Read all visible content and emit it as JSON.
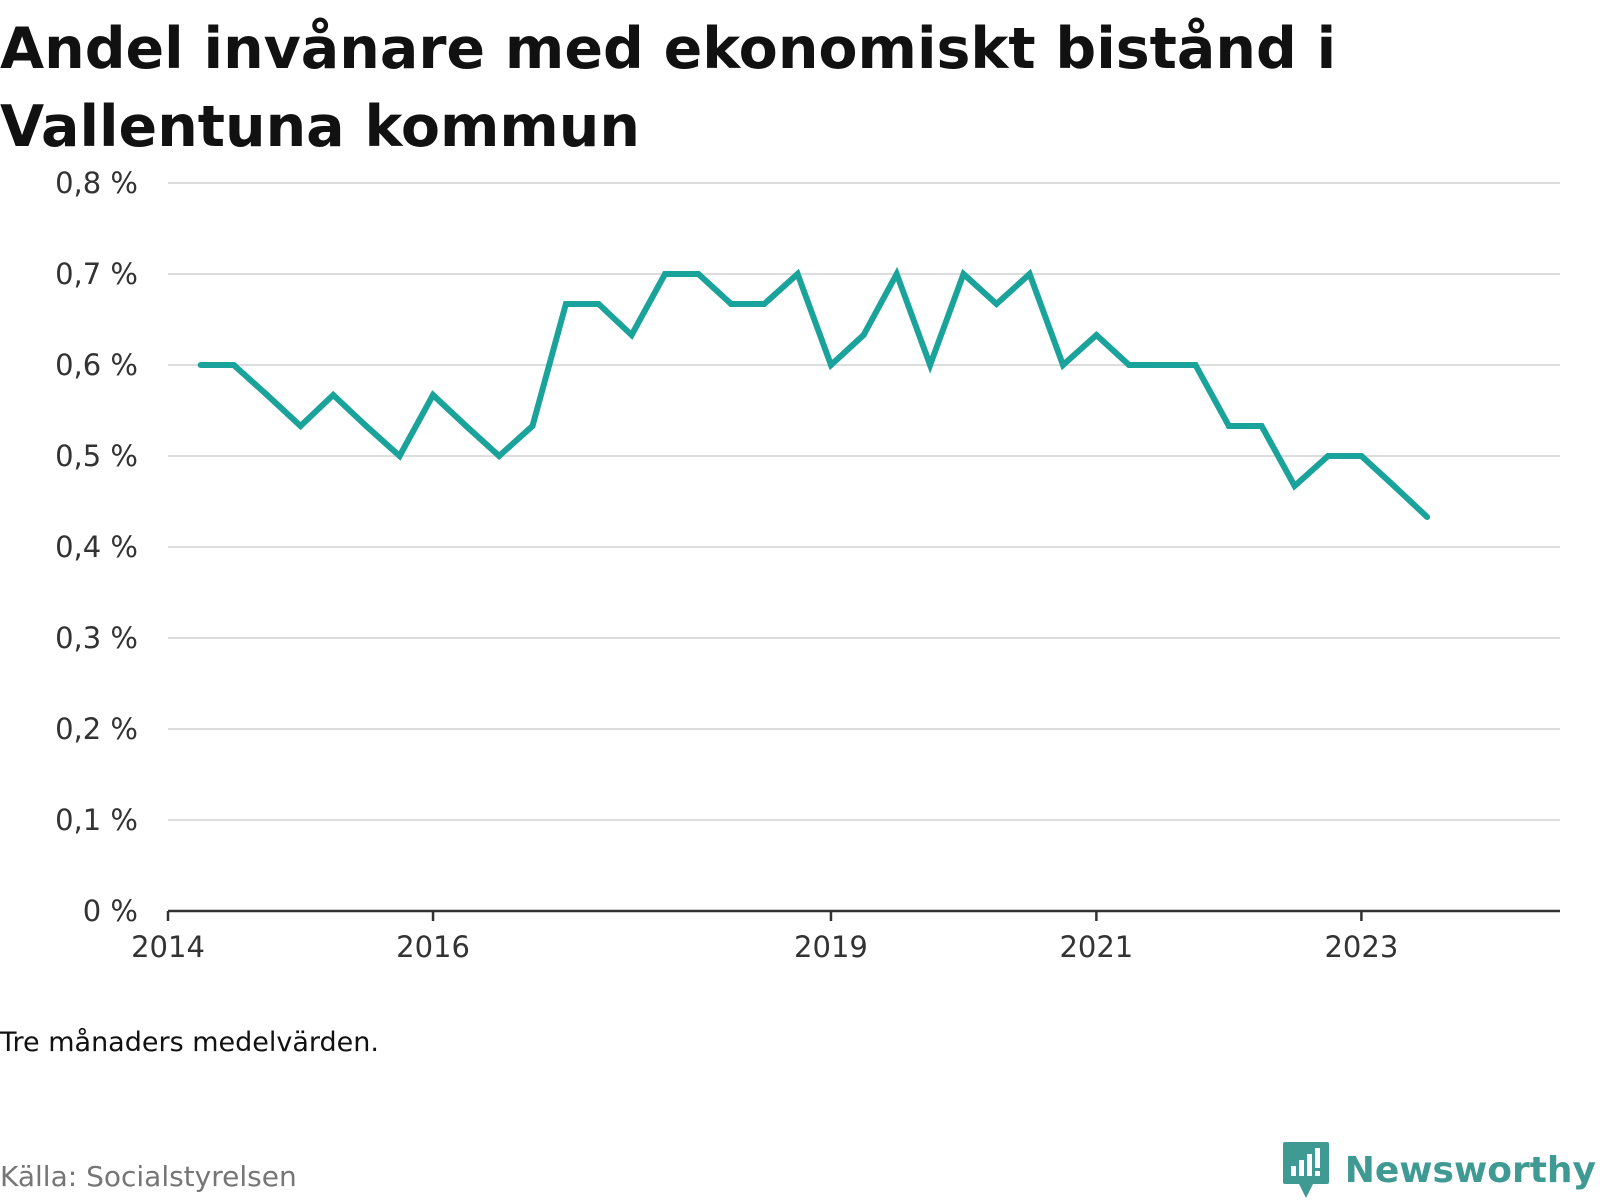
{
  "title": "Andel invånare med ekonomiskt bistånd i Vallentuna kommun",
  "note": "Tre månaders medelvärden.",
  "source": "Källa: Socialstyrelsen",
  "brand": {
    "name": "Newsworthy",
    "icon": "newsworthy-logo-icon"
  },
  "colors": {
    "line": "#1aa39a",
    "grid": "#dddddd",
    "axis": "#333333",
    "brand": "#3f9a94"
  },
  "chart_data": {
    "type": "line",
    "title": "Andel invånare med ekonomiskt bistånd i Vallentuna kommun",
    "xlabel": "",
    "ylabel": "",
    "ylim": [
      0,
      0.8
    ],
    "yticks": [
      0,
      0.1,
      0.2,
      0.3,
      0.4,
      0.5,
      0.6,
      0.7,
      0.8
    ],
    "ytick_labels": [
      "0 %",
      "0,1 %",
      "0,2 %",
      "0,3 %",
      "0,4 %",
      "0,5 %",
      "0,6 %",
      "0,7 %",
      "0,8 %"
    ],
    "xlim": [
      "2014-01-01",
      "2024-07-01"
    ],
    "xticks": [
      "2014-01-01",
      "2016-01-01",
      "2019-01-01",
      "2021-01-01",
      "2023-01-01"
    ],
    "xtick_labels": [
      "2014",
      "2016",
      "2019",
      "2021",
      "2023"
    ],
    "grid": true,
    "legend": "none",
    "series": [
      {
        "x": [
          "2014-04-01",
          "2014-07-01",
          "2014-10-01",
          "2015-01-01",
          "2015-04-01",
          "2015-07-01",
          "2015-10-01",
          "2016-01-01",
          "2016-04-01",
          "2016-07-01",
          "2016-10-01",
          "2017-01-01",
          "2017-04-01",
          "2017-07-01",
          "2017-10-01",
          "2018-01-01",
          "2018-04-01",
          "2018-07-01",
          "2018-10-01",
          "2019-01-01",
          "2019-04-01",
          "2019-07-01",
          "2019-10-01",
          "2020-01-01",
          "2020-04-01",
          "2020-07-01",
          "2020-10-01",
          "2021-01-01",
          "2021-04-01",
          "2021-07-01",
          "2021-10-01",
          "2022-01-01",
          "2022-04-01",
          "2022-07-01",
          "2022-10-01",
          "2023-01-01",
          "2023-04-01",
          "2023-07-01"
        ],
        "values": [
          0.6,
          0.6,
          0.567,
          0.533,
          0.567,
          0.533,
          0.5,
          0.567,
          0.533,
          0.5,
          0.533,
          0.667,
          0.667,
          0.633,
          0.7,
          0.7,
          0.667,
          0.667,
          0.7,
          0.6,
          0.633,
          0.7,
          0.6,
          0.7,
          0.667,
          0.7,
          0.6,
          0.633,
          0.6,
          0.6,
          0.6,
          0.533,
          0.533,
          0.467,
          0.5,
          0.5,
          0.467,
          0.433
        ]
      }
    ]
  }
}
